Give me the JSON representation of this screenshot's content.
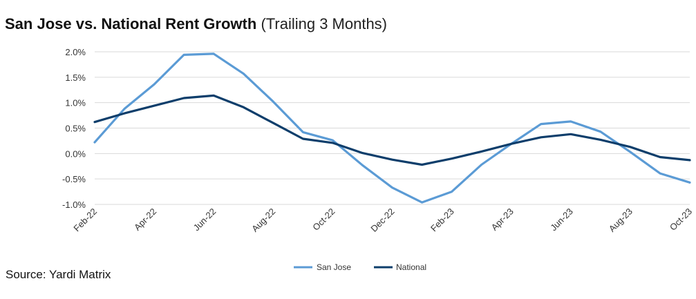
{
  "title": "San Jose vs. National Rent Growth",
  "subtitle": "(Trailing 3 Months)",
  "source": "Source: Yardi Matrix",
  "chart_data": {
    "type": "line",
    "title": "San Jose vs. National Rent Growth",
    "subtitle": "(Trailing 3 Months)",
    "xlabel": "",
    "ylabel": "",
    "x": [
      "Feb-22",
      "Mar-22",
      "Apr-22",
      "May-22",
      "Jun-22",
      "Jul-22",
      "Aug-22",
      "Sep-22",
      "Oct-22",
      "Nov-22",
      "Dec-22",
      "Jan-23",
      "Feb-23",
      "Mar-23",
      "Apr-23",
      "May-23",
      "Jun-23",
      "Jul-23",
      "Aug-23",
      "Sep-23",
      "Oct-23"
    ],
    "x_tick_labels": [
      "Feb-22",
      "Apr-22",
      "Jun-22",
      "Aug-22",
      "Oct-22",
      "Dec-22",
      "Feb-23",
      "Apr-23",
      "Jun-23",
      "Aug-23",
      "Oct-23"
    ],
    "y_tick_labels": [
      "2.0%",
      "1.5%",
      "1.0%",
      "0.5%",
      "0.0%",
      "-0.5%",
      "-1.0%"
    ],
    "y_ticks": [
      2.0,
      1.5,
      1.0,
      0.5,
      0.0,
      -0.5,
      -1.0
    ],
    "ylim": [
      -1.0,
      2.0
    ],
    "grid": true,
    "legend_position": "bottom-center",
    "series": [
      {
        "name": "San Jose",
        "color": "#5b9bd5",
        "values": [
          0.22,
          0.88,
          1.36,
          1.94,
          1.96,
          1.57,
          1.02,
          0.42,
          0.26,
          -0.23,
          -0.67,
          -0.96,
          -0.75,
          -0.22,
          0.19,
          0.58,
          0.63,
          0.43,
          0.03,
          -0.39,
          -0.57
        ]
      },
      {
        "name": "National",
        "color": "#0e3e6b",
        "values": [
          0.62,
          0.79,
          0.94,
          1.09,
          1.14,
          0.91,
          0.6,
          0.29,
          0.21,
          0.01,
          -0.12,
          -0.22,
          -0.1,
          0.04,
          0.19,
          0.32,
          0.38,
          0.27,
          0.13,
          -0.07,
          -0.13
        ]
      }
    ]
  }
}
